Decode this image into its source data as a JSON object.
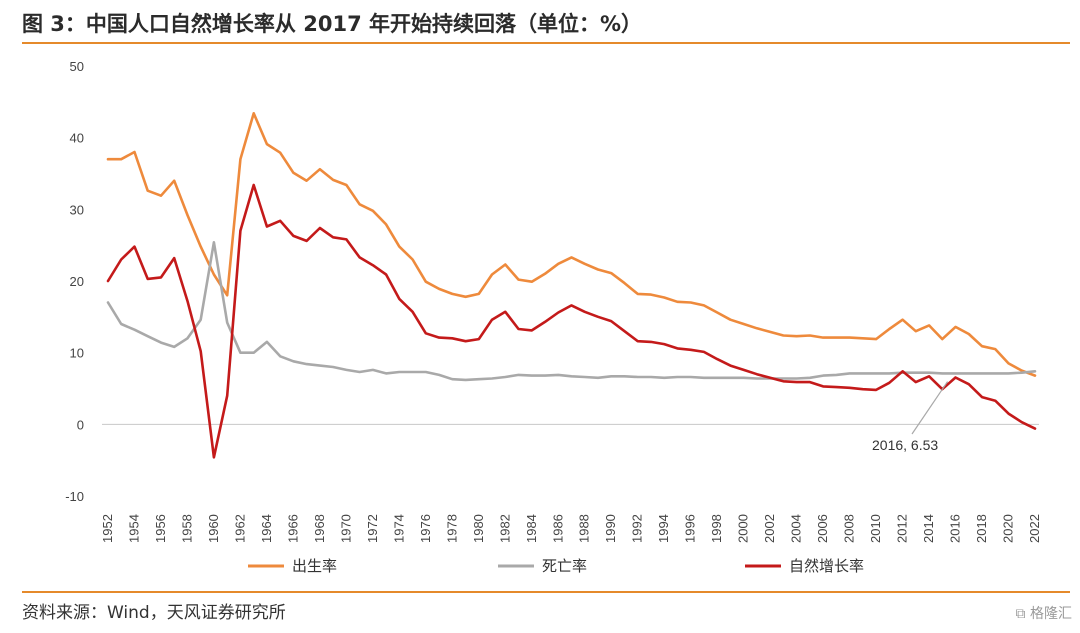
{
  "header": {
    "title": "图 3：中国人口自然增长率从 2017 年开始持续回落（单位：%）"
  },
  "footer": {
    "source": "资料来源：Wind，天风证券研究所",
    "watermark": "格隆汇"
  },
  "chart_data": {
    "type": "line",
    "title": "中国人口自然增长率从 2017 年开始持续回落（单位：%）",
    "ylim": [
      -10,
      50
    ],
    "yticks": [
      -10,
      0,
      10,
      20,
      30,
      40,
      50
    ],
    "xlim": [
      1952,
      2022
    ],
    "xticks": [
      1952,
      1954,
      1956,
      1958,
      1960,
      1962,
      1964,
      1966,
      1968,
      1970,
      1972,
      1974,
      1976,
      1978,
      1980,
      1982,
      1984,
      1986,
      1988,
      1990,
      1992,
      1994,
      1996,
      1998,
      2000,
      2002,
      2004,
      2006,
      2008,
      2010,
      2012,
      2014,
      2016,
      2018,
      2020,
      2022
    ],
    "grid": false,
    "legend_position": "bottom",
    "x": [
      1952,
      1953,
      1954,
      1955,
      1956,
      1957,
      1958,
      1959,
      1960,
      1961,
      1962,
      1963,
      1964,
      1965,
      1966,
      1967,
      1968,
      1969,
      1970,
      1971,
      1972,
      1973,
      1974,
      1975,
      1976,
      1977,
      1978,
      1979,
      1980,
      1981,
      1982,
      1983,
      1984,
      1985,
      1986,
      1987,
      1988,
      1989,
      1990,
      1991,
      1992,
      1993,
      1994,
      1995,
      1996,
      1997,
      1998,
      1999,
      2000,
      2001,
      2002,
      2003,
      2004,
      2005,
      2006,
      2007,
      2008,
      2009,
      2010,
      2011,
      2012,
      2013,
      2014,
      2015,
      2016,
      2017,
      2018,
      2019,
      2020,
      2021,
      2022
    ],
    "series": [
      {
        "name": "出生率",
        "color": "#ee8a3c",
        "values": [
          37.0,
          37.0,
          38.0,
          32.6,
          31.9,
          34.0,
          29.2,
          24.8,
          20.9,
          18.0,
          37.0,
          43.4,
          39.1,
          37.9,
          35.1,
          34.0,
          35.6,
          34.1,
          33.4,
          30.7,
          29.8,
          27.9,
          24.8,
          23.0,
          19.9,
          18.9,
          18.2,
          17.8,
          18.2,
          20.9,
          22.3,
          20.2,
          19.9,
          21.0,
          22.4,
          23.3,
          22.4,
          21.6,
          21.1,
          19.7,
          18.2,
          18.1,
          17.7,
          17.1,
          17.0,
          16.6,
          15.6,
          14.6,
          14.0,
          13.4,
          12.9,
          12.4,
          12.3,
          12.4,
          12.1,
          12.1,
          12.1,
          12.0,
          11.9,
          13.3,
          14.6,
          13.0,
          13.8,
          11.9,
          13.6,
          12.6,
          10.9,
          10.5,
          8.5,
          7.5,
          6.8
        ]
      },
      {
        "name": "死亡率",
        "color": "#a9a9a9",
        "values": [
          17.0,
          14.0,
          13.2,
          12.3,
          11.4,
          10.8,
          12.0,
          14.6,
          25.4,
          14.2,
          10.0,
          10.0,
          11.5,
          9.5,
          8.8,
          8.4,
          8.2,
          8.0,
          7.6,
          7.3,
          7.6,
          7.1,
          7.3,
          7.3,
          7.3,
          6.9,
          6.3,
          6.2,
          6.3,
          6.4,
          6.6,
          6.9,
          6.8,
          6.8,
          6.9,
          6.7,
          6.6,
          6.5,
          6.7,
          6.7,
          6.6,
          6.6,
          6.5,
          6.6,
          6.6,
          6.5,
          6.5,
          6.5,
          6.5,
          6.4,
          6.4,
          6.4,
          6.4,
          6.5,
          6.8,
          6.9,
          7.1,
          7.1,
          7.1,
          7.1,
          7.2,
          7.2,
          7.2,
          7.1,
          7.1,
          7.1,
          7.1,
          7.1,
          7.1,
          7.2,
          7.4
        ]
      },
      {
        "name": "自然增长率",
        "color": "#c41a1a",
        "values": [
          20.0,
          23.0,
          24.8,
          20.3,
          20.5,
          23.2,
          17.2,
          10.2,
          -4.6,
          4.0,
          27.0,
          33.4,
          27.6,
          28.4,
          26.3,
          25.6,
          27.4,
          26.1,
          25.8,
          23.3,
          22.2,
          20.9,
          17.5,
          15.7,
          12.7,
          12.1,
          12.0,
          11.6,
          11.9,
          14.6,
          15.7,
          13.3,
          13.1,
          14.3,
          15.6,
          16.6,
          15.7,
          15.0,
          14.4,
          13.0,
          11.6,
          11.5,
          11.2,
          10.6,
          10.4,
          10.1,
          9.1,
          8.2,
          7.6,
          7.0,
          6.5,
          6.0,
          5.9,
          5.9,
          5.3,
          5.2,
          5.1,
          4.9,
          4.8,
          5.8,
          7.4,
          5.9,
          6.7,
          4.9,
          6.53,
          5.6,
          3.8,
          3.3,
          1.5,
          0.3,
          -0.6
        ]
      }
    ],
    "annotation": {
      "text": "2016, 6.53",
      "x": 2016,
      "y": 6.53
    }
  }
}
